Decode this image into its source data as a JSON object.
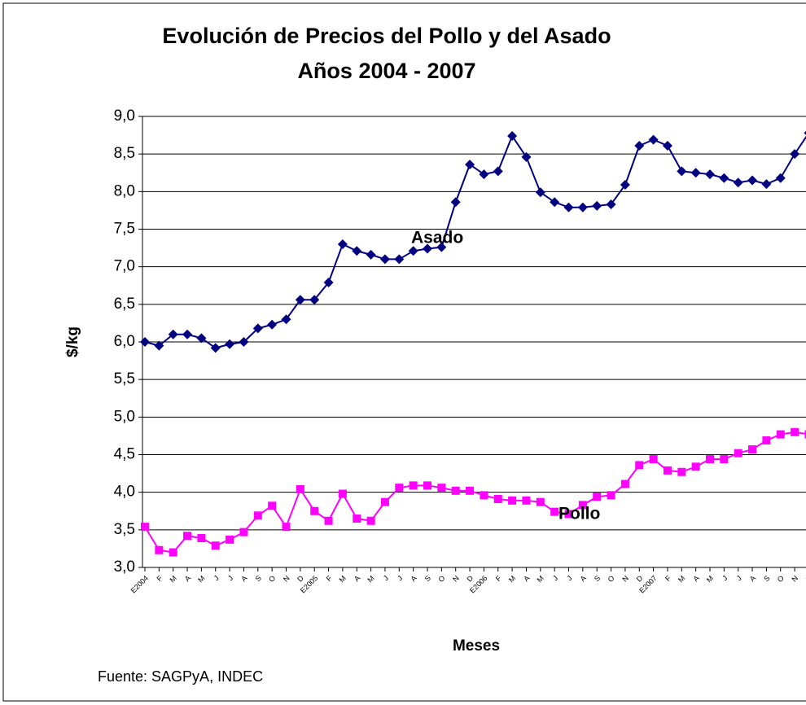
{
  "chart_data": {
    "type": "line",
    "title": "Evolución de Precios del Pollo y del Asado",
    "subtitle": "Años 2004 - 2007",
    "y_label": "$/kg",
    "x_label": "Meses",
    "source": "Fuente: SAGPyA, INDEC",
    "annotations": [
      "Asado",
      "Pollo"
    ],
    "grid": true,
    "categories": [
      "E2004",
      "F",
      "M",
      "A",
      "M",
      "J",
      "J",
      "A",
      "S",
      "O",
      "N",
      "D",
      "E2005",
      "F",
      "M",
      "A",
      "M",
      "J",
      "J",
      "A",
      "S",
      "O",
      "N",
      "D",
      "E2006",
      "F",
      "M",
      "A",
      "M",
      "J",
      "J",
      "A",
      "S",
      "O",
      "N",
      "D",
      "E2007",
      "F",
      "M",
      "A",
      "M",
      "J",
      "J",
      "A",
      "S",
      "O",
      "N",
      "D"
    ],
    "ylim": [
      3.0,
      9.0
    ],
    "yticks": [
      {
        "value": 3.0,
        "label": "3,0"
      },
      {
        "value": 3.5,
        "label": "3,5"
      },
      {
        "value": 4.0,
        "label": "4,0"
      },
      {
        "value": 4.5,
        "label": "4,5"
      },
      {
        "value": 5.0,
        "label": "5,0"
      },
      {
        "value": 5.5,
        "label": "5,5"
      },
      {
        "value": 6.0,
        "label": "6,0"
      },
      {
        "value": 6.5,
        "label": "6,5"
      },
      {
        "value": 7.0,
        "label": "7,0"
      },
      {
        "value": 7.5,
        "label": "7,5"
      },
      {
        "value": 8.0,
        "label": "8,0"
      },
      {
        "value": 8.5,
        "label": "8,5"
      },
      {
        "value": 9.0,
        "label": "9,0"
      }
    ],
    "series": [
      {
        "name": "Asado",
        "color": "#000080",
        "marker": "diamond",
        "values": [
          6.0,
          5.95,
          6.1,
          6.1,
          6.05,
          5.92,
          5.97,
          6.0,
          6.18,
          6.23,
          6.3,
          6.56,
          6.56,
          6.79,
          7.3,
          7.21,
          7.16,
          7.1,
          7.1,
          7.21,
          7.24,
          7.26,
          7.86,
          8.36,
          8.23,
          8.27,
          8.74,
          8.46,
          7.99,
          7.86,
          7.79,
          7.79,
          7.81,
          7.83,
          8.09,
          8.61,
          8.69,
          8.61,
          8.27,
          8.25,
          8.23,
          8.18,
          8.12,
          8.15,
          8.1,
          8.18,
          8.5,
          8.78
        ]
      },
      {
        "name": "Pollo",
        "color": "#ff00ff",
        "marker": "square",
        "values": [
          3.54,
          3.23,
          3.2,
          3.42,
          3.39,
          3.29,
          3.37,
          3.47,
          3.69,
          3.82,
          3.54,
          4.04,
          3.75,
          3.62,
          3.98,
          3.65,
          3.62,
          3.87,
          4.06,
          4.09,
          4.09,
          4.06,
          4.02,
          4.02,
          3.96,
          3.91,
          3.89,
          3.89,
          3.87,
          3.74,
          3.71,
          3.83,
          3.94,
          3.96,
          4.11,
          4.36,
          4.44,
          4.29,
          4.27,
          4.34,
          4.44,
          4.44,
          4.52,
          4.57,
          4.69,
          4.77,
          4.8,
          4.77
        ]
      }
    ]
  }
}
